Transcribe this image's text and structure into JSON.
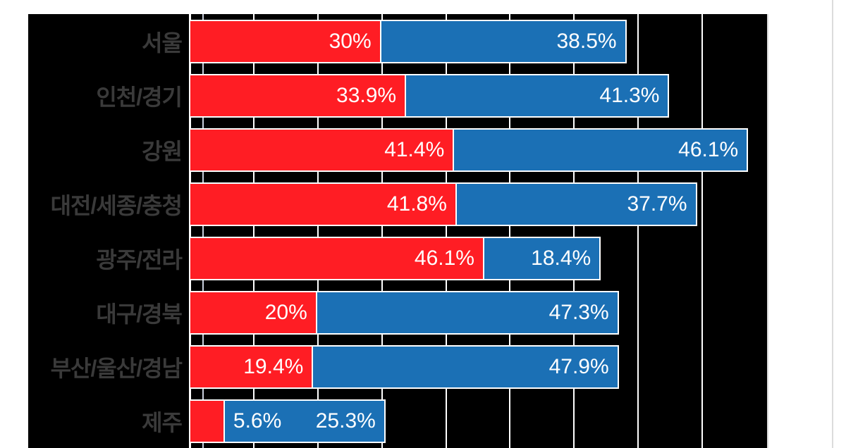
{
  "chart_data": {
    "type": "bar",
    "orientation": "horizontal",
    "stacked": true,
    "title": "",
    "legend": "none",
    "grid": true,
    "xlim": [
      0,
      90
    ],
    "gridline_step_percent": 10,
    "categories": [
      "서울",
      "인천/경기",
      "강원",
      "대전/세종/충청",
      "광주/전라",
      "대구/경북",
      "부산/울산/경남",
      "제주"
    ],
    "series": [
      {
        "name": "red-series",
        "color": "#ff1d24",
        "values": [
          30,
          33.9,
          41.4,
          41.8,
          46.1,
          20,
          19.4,
          5.6
        ],
        "labels": [
          "30%",
          "33.9%",
          "41.4%",
          "41.8%",
          "46.1%",
          "20%",
          "19.4%",
          "5.6%"
        ]
      },
      {
        "name": "blue-series",
        "color": "#1b70b5",
        "values": [
          38.5,
          41.3,
          46.1,
          37.7,
          18.4,
          47.3,
          47.9,
          25.3
        ],
        "labels": [
          "38.5%",
          "41.3%",
          "46.1%",
          "37.7%",
          "18.4%",
          "47.3%",
          "47.9%",
          "25.3%"
        ]
      }
    ],
    "colors": {
      "plot_background": "#000000",
      "page_background": "#ffffff",
      "gridline": "#ffffff",
      "category_label": "#3a3a3a",
      "value_label": "#ffffff"
    }
  }
}
